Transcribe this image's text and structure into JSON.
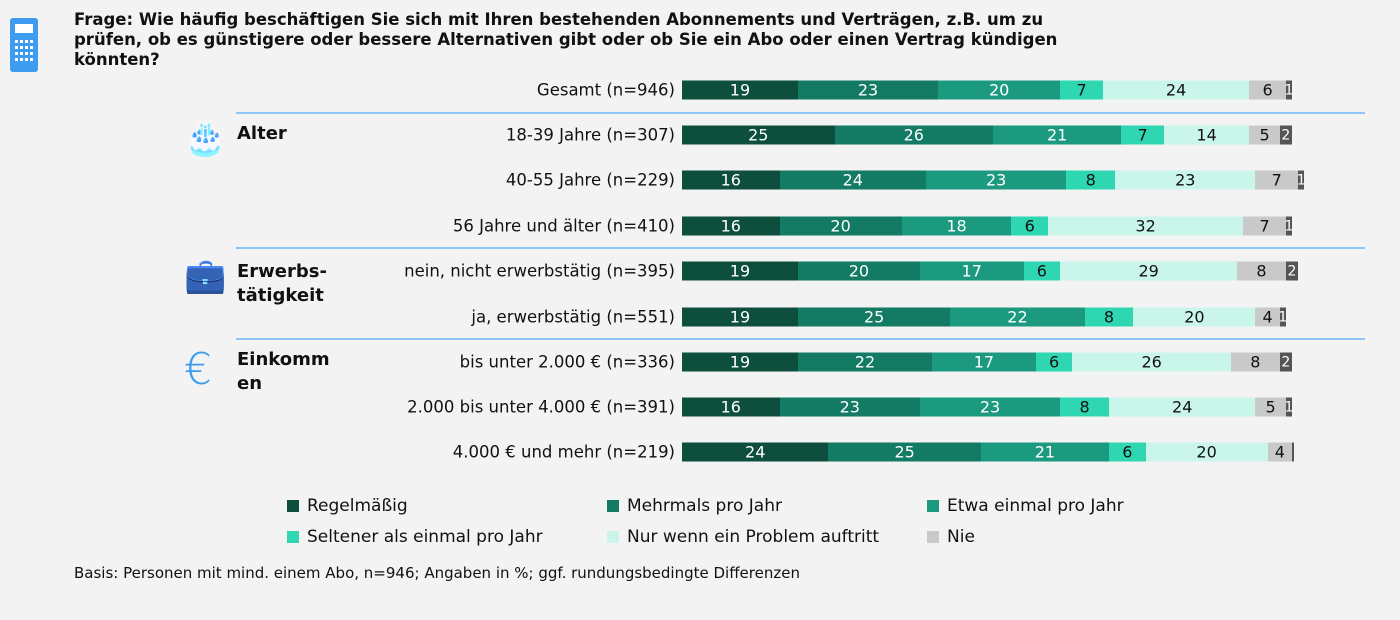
{
  "title": "Frage: Wie häufig beschäftigen Sie sich mit Ihren bestehenden Abonnements und Verträgen, z.B. um zu prüfen, ob es günstigere oder bessere Alternativen gibt oder ob Sie ein Abo oder einen Vertrag kündigen könnten?",
  "groups": [
    {
      "label": "Alter",
      "icon": "birthday-cake-icon"
    },
    {
      "label": "Erwerbs-\ntätigkeit",
      "icon": "briefcase-icon"
    },
    {
      "label": "Einkomm\nen",
      "icon": "euro-icon"
    }
  ],
  "footnote": "Basis: Personen mit mind. einem Abo, n=946; Angaben in %; ggf. rundungsbedingte Differenzen",
  "chart_data": {
    "type": "bar",
    "orientation": "horizontal",
    "stacked": true,
    "xlim": [
      0,
      100
    ],
    "categories": [
      "Gesamt (n=946)",
      "18-39 Jahre (n=307)",
      "40-55 Jahre (n=229)",
      "56 Jahre und älter (n=410)",
      "nein, nicht erwerbstätig (n=395)",
      "ja, erwerbstätig (n=551)",
      "bis unter 2.000 € (n=336)",
      "2.000 bis unter 4.000 € (n=391)",
      "4.000 € und mehr (n=219)"
    ],
    "series": [
      {
        "name": "Regelmäßig",
        "color": "#0d4f3c",
        "values": [
          19,
          25,
          16,
          16,
          19,
          19,
          19,
          16,
          24
        ]
      },
      {
        "name": "Mehrmals pro Jahr",
        "color": "#137a63",
        "values": [
          23,
          26,
          24,
          20,
          20,
          25,
          22,
          23,
          25
        ]
      },
      {
        "name": "Etwa einmal pro Jahr",
        "color": "#1c9a80",
        "values": [
          20,
          21,
          23,
          18,
          17,
          22,
          17,
          23,
          21
        ]
      },
      {
        "name": "Seltener als einmal pro Jahr",
        "color": "#2fd6b2",
        "values": [
          7,
          7,
          8,
          6,
          6,
          8,
          6,
          8,
          6
        ]
      },
      {
        "name": "Nur wenn ein Problem auftritt",
        "color": "#c9f5ea",
        "values": [
          24,
          14,
          23,
          32,
          29,
          20,
          26,
          24,
          20
        ]
      },
      {
        "name": "Nie",
        "color": "#c9c9c9",
        "values": [
          6,
          5,
          7,
          7,
          8,
          4,
          8,
          5,
          4
        ]
      },
      {
        "color": "#555555",
        "values": [
          1,
          2,
          1,
          1,
          2,
          1,
          2,
          1,
          0
        ]
      }
    ],
    "legend": "bottom"
  }
}
